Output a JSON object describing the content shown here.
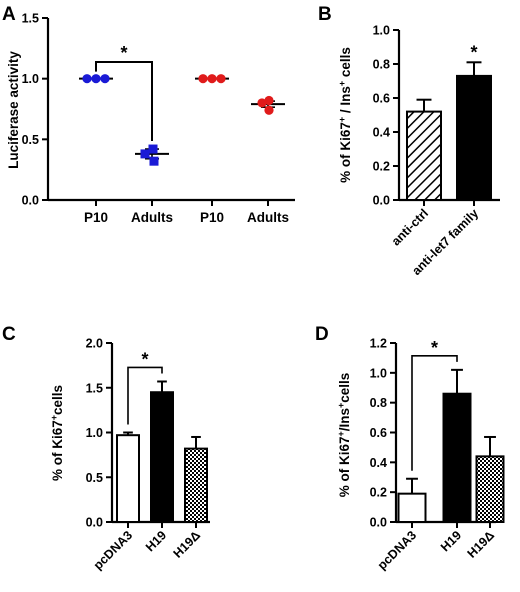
{
  "chart_data": [
    {
      "panel": "A",
      "type": "scatter",
      "ylabel": "Luciferase activity",
      "ylim": [
        0,
        1.5
      ],
      "yticks": [
        "0.0",
        "0.5",
        "1.0",
        "1.5"
      ],
      "categories": [
        "P10",
        "Adults",
        "P10",
        "Adults"
      ],
      "groups": [
        {
          "category": "P10",
          "color": "#1a1ad6",
          "marker": "circle",
          "values": [
            1.0,
            1.0,
            1.0
          ],
          "mean": 1.0,
          "sem": 0
        },
        {
          "category": "Adults",
          "color": "#1a1ad6",
          "marker": "square",
          "values": [
            0.42,
            0.38,
            0.32
          ],
          "mean": 0.38,
          "sem": 0.04
        },
        {
          "category": "P10",
          "color": "#e01b1b",
          "marker": "circle",
          "values": [
            1.0,
            1.0,
            1.0
          ],
          "mean": 1.0,
          "sem": 0
        },
        {
          "category": "Adults",
          "color": "#e01b1b",
          "marker": "circle",
          "values": [
            0.82,
            0.8,
            0.74
          ],
          "mean": 0.79,
          "sem": 0.025
        }
      ],
      "significance": [
        {
          "from": 0,
          "to": 1,
          "label": "*"
        }
      ]
    },
    {
      "panel": "B",
      "type": "bar",
      "ylabel_parts": [
        "% of Ki67",
        "+",
        " / Ins",
        "+",
        " cells"
      ],
      "ylim": [
        0,
        1.0
      ],
      "yticks": [
        "0.0",
        "0.2",
        "0.4",
        "0.6",
        "0.8",
        "1.0"
      ],
      "categories": [
        "anti-ctrl",
        "anti-let7 family"
      ],
      "values": [
        0.52,
        0.73
      ],
      "errors": [
        0.07,
        0.08
      ],
      "fills": [
        "hatch",
        "black"
      ],
      "annotations": [
        {
          "index": 1,
          "label": "*"
        }
      ]
    },
    {
      "panel": "C",
      "type": "bar",
      "ylabel_parts": [
        "% of Ki67",
        "+",
        "cells"
      ],
      "ylim": [
        0,
        2.0
      ],
      "yticks": [
        "0.0",
        "0.5",
        "1.0",
        "1.5",
        "2.0"
      ],
      "categories": [
        "pcDNA3",
        "H19",
        "H19Δ"
      ],
      "values": [
        0.97,
        1.45,
        0.82
      ],
      "errors": [
        0.03,
        0.12,
        0.13
      ],
      "fills": [
        "white",
        "black",
        "dots"
      ],
      "significance": [
        {
          "from": 0,
          "to": 1,
          "label": "*"
        }
      ]
    },
    {
      "panel": "D",
      "type": "bar",
      "ylabel_parts": [
        "% of Ki67",
        "+",
        "/Ins",
        "+",
        "cells"
      ],
      "ylim": [
        0,
        1.2
      ],
      "yticks": [
        "0.0",
        "0.2",
        "0.4",
        "0.6",
        "0.8",
        "1.0",
        "1.2"
      ],
      "categories": [
        "pcDNA3",
        "H19",
        "H19Δ"
      ],
      "values": [
        0.19,
        0.86,
        0.44
      ],
      "errors": [
        0.1,
        0.16,
        0.13
      ],
      "fills": [
        "white",
        "black",
        "dots"
      ],
      "significance": [
        {
          "from": 0,
          "to": 1,
          "label": "*"
        }
      ]
    }
  ]
}
